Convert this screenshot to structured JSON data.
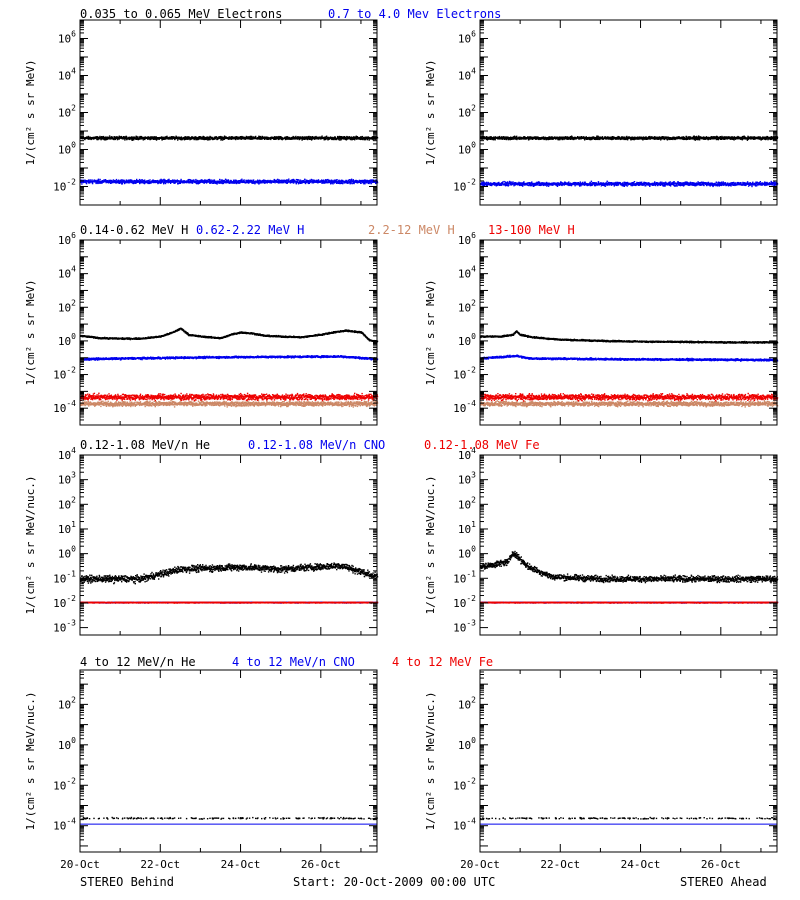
{
  "footer": {
    "left": "STEREO Behind",
    "center": "Start: 20-Oct-2009 00:00 UTC",
    "right": "STEREO Ahead"
  },
  "x_tick_labels": [
    "20-Oct",
    "22-Oct",
    "24-Oct",
    "26-Oct"
  ],
  "colors": {
    "black": "#000000",
    "blue": "#0000ee",
    "salmon": "#cc8866",
    "red": "#ee0000"
  },
  "rows": [
    {
      "legend": [
        {
          "text": "0.035 to 0.065 MeV Electrons",
          "color": "#000000"
        },
        {
          "text": "0.7 to 4.0 Mev Electrons",
          "color": "#0000ee"
        }
      ],
      "ylabel": "1/(cm² s sr MeV)"
    },
    {
      "legend": [
        {
          "text": "0.14-0.62 MeV H",
          "color": "#000000"
        },
        {
          "text": "0.62-2.22 MeV H",
          "color": "#0000ee"
        },
        {
          "text": "2.2-12 MeV H",
          "color": "#cc8866"
        },
        {
          "text": "13-100 MeV H",
          "color": "#ee0000"
        }
      ],
      "ylabel": "1/(cm² s sr MeV)"
    },
    {
      "legend": [
        {
          "text": "0.12-1.08 MeV/n He",
          "color": "#000000"
        },
        {
          "text": "0.12-1.08 MeV/n CNO",
          "color": "#0000ee"
        },
        {
          "text": "0.12-1.08 MeV Fe",
          "color": "#ee0000"
        }
      ],
      "ylabel": "1/(cm² s sr MeV/nuc.)"
    },
    {
      "legend": [
        {
          "text": "4 to 12 MeV/n He",
          "color": "#000000"
        },
        {
          "text": "4 to 12 MeV/n CNO",
          "color": "#0000ee"
        },
        {
          "text": "4 to 12 MeV Fe",
          "color": "#ee0000"
        }
      ],
      "ylabel": "1/(cm² s sr MeV/nuc.)"
    }
  ],
  "chart_data": [
    {
      "type": "scatter",
      "spacecraft": "STEREO Behind",
      "row": 0,
      "col": 0,
      "x_range_days": [
        0,
        7.4
      ],
      "y_scale": "log",
      "ylim_exp": [
        -3,
        7
      ],
      "y_tick_exponents": [
        -2,
        0,
        2,
        4,
        6
      ],
      "series": [
        {
          "name": "0.035 to 0.065 MeV Electrons",
          "color": "#000000",
          "points": [
            [
              0,
              4.5
            ],
            [
              7.4,
              4.5
            ]
          ],
          "scatter_dex": 0.12
        },
        {
          "name": "0.7 to 4.0 Mev Electrons",
          "color": "#0000ee",
          "points": [
            [
              0,
              0.02
            ],
            [
              7.4,
              0.02
            ]
          ],
          "scatter_dex": 0.15
        }
      ]
    },
    {
      "type": "scatter",
      "spacecraft": "STEREO Ahead",
      "row": 0,
      "col": 1,
      "x_range_days": [
        0,
        7.4
      ],
      "y_scale": "log",
      "ylim_exp": [
        -3,
        7
      ],
      "y_tick_exponents": [
        -2,
        0,
        2,
        4,
        6
      ],
      "series": [
        {
          "name": "0.035 to 0.065 MeV Electrons",
          "color": "#000000",
          "points": [
            [
              0,
              4.5
            ],
            [
              7.4,
              4.5
            ]
          ],
          "scatter_dex": 0.12
        },
        {
          "name": "0.7 to 4.0 Mev Electrons",
          "color": "#0000ee",
          "points": [
            [
              0,
              0.015
            ],
            [
              7.4,
              0.015
            ]
          ],
          "scatter_dex": 0.15
        }
      ]
    },
    {
      "type": "line",
      "spacecraft": "STEREO Behind",
      "row": 1,
      "col": 0,
      "x_range_days": [
        0,
        7.4
      ],
      "y_scale": "log",
      "ylim_exp": [
        -5,
        6
      ],
      "y_tick_exponents": [
        -4,
        -2,
        0,
        2,
        4,
        6
      ],
      "series": [
        {
          "name": "0.14-0.62 MeV H",
          "color": "#000000",
          "points": [
            [
              0,
              2.2
            ],
            [
              0.5,
              1.6
            ],
            [
              1,
              1.5
            ],
            [
              1.5,
              1.5
            ],
            [
              2,
              2.0
            ],
            [
              2.3,
              3.5
            ],
            [
              2.5,
              6
            ],
            [
              2.7,
              2.5
            ],
            [
              3,
              2.0
            ],
            [
              3.5,
              1.6
            ],
            [
              3.8,
              2.8
            ],
            [
              4,
              3.5
            ],
            [
              4.3,
              3.0
            ],
            [
              4.6,
              2.2
            ],
            [
              5,
              2.0
            ],
            [
              5.5,
              1.8
            ],
            [
              6,
              2.6
            ],
            [
              6.3,
              3.5
            ],
            [
              6.6,
              4.5
            ],
            [
              7,
              3.5
            ],
            [
              7.2,
              1.2
            ],
            [
              7.4,
              1.0
            ]
          ]
        },
        {
          "name": "0.62-2.22 MeV H",
          "color": "#0000ee",
          "points": [
            [
              0,
              0.09
            ],
            [
              2.5,
              0.11
            ],
            [
              4,
              0.12
            ],
            [
              6.5,
              0.13
            ],
            [
              7.4,
              0.09
            ]
          ],
          "scatter_dex": 0.08
        },
        {
          "name": "2.2-12 MeV H",
          "color": "#cc8866",
          "points": [
            [
              0,
              0.0002
            ],
            [
              7.4,
              0.0002
            ]
          ],
          "scatter_dex": 0.2
        },
        {
          "name": "13-100 MeV H",
          "color": "#ee0000",
          "points": [
            [
              0,
              0.0005
            ],
            [
              7.4,
              0.0005
            ]
          ],
          "scatter_dex": 0.25
        }
      ]
    },
    {
      "type": "line",
      "spacecraft": "STEREO Ahead",
      "row": 1,
      "col": 1,
      "x_range_days": [
        0,
        7.4
      ],
      "y_scale": "log",
      "ylim_exp": [
        -5,
        6
      ],
      "y_tick_exponents": [
        -4,
        -2,
        0,
        2,
        4,
        6
      ],
      "series": [
        {
          "name": "0.14-0.62 MeV H",
          "color": "#000000",
          "points": [
            [
              0,
              2.0
            ],
            [
              0.5,
              2.0
            ],
            [
              0.8,
              2.5
            ],
            [
              0.9,
              4.0
            ],
            [
              1,
              2.5
            ],
            [
              1.3,
              1.8
            ],
            [
              2,
              1.3
            ],
            [
              3,
              1.1
            ],
            [
              4,
              1.0
            ],
            [
              5,
              0.95
            ],
            [
              6,
              0.9
            ],
            [
              7.4,
              0.9
            ]
          ]
        },
        {
          "name": "0.62-2.22 MeV H",
          "color": "#0000ee",
          "points": [
            [
              0,
              0.1
            ],
            [
              0.9,
              0.14
            ],
            [
              1.2,
              0.1
            ],
            [
              3,
              0.09
            ],
            [
              7.4,
              0.08
            ]
          ],
          "scatter_dex": 0.08
        },
        {
          "name": "2.2-12 MeV H",
          "color": "#cc8866",
          "points": [
            [
              0,
              0.0002
            ],
            [
              7.4,
              0.0002
            ]
          ],
          "scatter_dex": 0.2
        },
        {
          "name": "13-100 MeV H",
          "color": "#ee0000",
          "points": [
            [
              0,
              0.0005
            ],
            [
              7.4,
              0.0005
            ]
          ],
          "scatter_dex": 0.25
        }
      ]
    },
    {
      "type": "scatter",
      "spacecraft": "STEREO Behind",
      "row": 2,
      "col": 0,
      "x_range_days": [
        0,
        7.4
      ],
      "y_scale": "log",
      "ylim_exp": [
        -3.3,
        4
      ],
      "y_tick_exponents": [
        -3,
        -2,
        -1,
        0,
        1,
        2,
        3,
        4
      ],
      "series": [
        {
          "name": "0.12-1.08 MeV/n He",
          "color": "#000000",
          "points": [
            [
              0,
              0.1
            ],
            [
              1.5,
              0.1
            ],
            [
              2.5,
              0.25
            ],
            [
              4,
              0.3
            ],
            [
              5,
              0.25
            ],
            [
              6.5,
              0.35
            ],
            [
              7.4,
              0.12
            ]
          ],
          "scatter_dex": 0.2
        },
        {
          "name": "0.12-1.08 MeV/n CNO",
          "color": "#0000ee",
          "points": [
            [
              0,
              0.011
            ],
            [
              7.4,
              0.011
            ]
          ],
          "scatter_dex": 0.02
        },
        {
          "name": "0.12-1.08 MeV Fe",
          "color": "#ee0000",
          "points": [
            [
              0,
              0.011
            ],
            [
              7.4,
              0.011
            ]
          ],
          "scatter_dex": 0.02
        }
      ]
    },
    {
      "type": "scatter",
      "spacecraft": "STEREO Ahead",
      "row": 2,
      "col": 1,
      "x_range_days": [
        0,
        7.4
      ],
      "y_scale": "log",
      "ylim_exp": [
        -3.3,
        4
      ],
      "y_tick_exponents": [
        -3,
        -2,
        -1,
        0,
        1,
        2,
        3,
        4
      ],
      "series": [
        {
          "name": "0.12-1.08 MeV/n He",
          "color": "#000000",
          "points": [
            [
              0,
              0.3
            ],
            [
              0.7,
              0.5
            ],
            [
              0.8,
              1.2
            ],
            [
              1.2,
              0.3
            ],
            [
              1.8,
              0.12
            ],
            [
              3,
              0.1
            ],
            [
              7.4,
              0.1
            ]
          ],
          "scatter_dex": 0.18
        },
        {
          "name": "0.12-1.08 MeV/n CNO",
          "color": "#0000ee",
          "points": [
            [
              0,
              0.011
            ],
            [
              7.4,
              0.011
            ]
          ],
          "scatter_dex": 0.02
        },
        {
          "name": "0.12-1.08 MeV Fe",
          "color": "#ee0000",
          "points": [
            [
              0,
              0.011
            ],
            [
              7.4,
              0.011
            ]
          ],
          "scatter_dex": 0.02
        }
      ]
    },
    {
      "type": "scatter",
      "spacecraft": "STEREO Behind",
      "row": 3,
      "col": 0,
      "x_range_days": [
        0,
        7.4
      ],
      "y_scale": "log",
      "ylim_exp": [
        -5.3,
        3.7
      ],
      "y_tick_exponents": [
        -4,
        -2,
        0,
        2
      ],
      "series": [
        {
          "name": "4 to 12 MeV/n He",
          "color": "#000000",
          "points": [
            [
              0,
              0.00025
            ],
            [
              7.4,
              0.00025
            ]
          ],
          "scatter_dex": 0.05
        },
        {
          "name": "4 to 12 MeV/n CNO",
          "color": "#0000ee",
          "points": [
            [
              0,
              0.00012
            ],
            [
              7.4,
              0.00012
            ]
          ],
          "scatter_dex": 0.0
        }
      ]
    },
    {
      "type": "scatter",
      "spacecraft": "STEREO Ahead",
      "row": 3,
      "col": 1,
      "x_range_days": [
        0,
        7.4
      ],
      "y_scale": "log",
      "ylim_exp": [
        -5.3,
        3.7
      ],
      "y_tick_exponents": [
        -4,
        -2,
        0,
        2
      ],
      "series": [
        {
          "name": "4 to 12 MeV/n He",
          "color": "#000000",
          "points": [
            [
              0,
              0.00025
            ],
            [
              7.4,
              0.00025
            ]
          ],
          "scatter_dex": 0.05
        },
        {
          "name": "4 to 12 MeV/n CNO",
          "color": "#0000ee",
          "points": [
            [
              0,
              0.00012
            ],
            [
              7.4,
              0.00012
            ]
          ],
          "scatter_dex": 0.0
        }
      ]
    }
  ]
}
